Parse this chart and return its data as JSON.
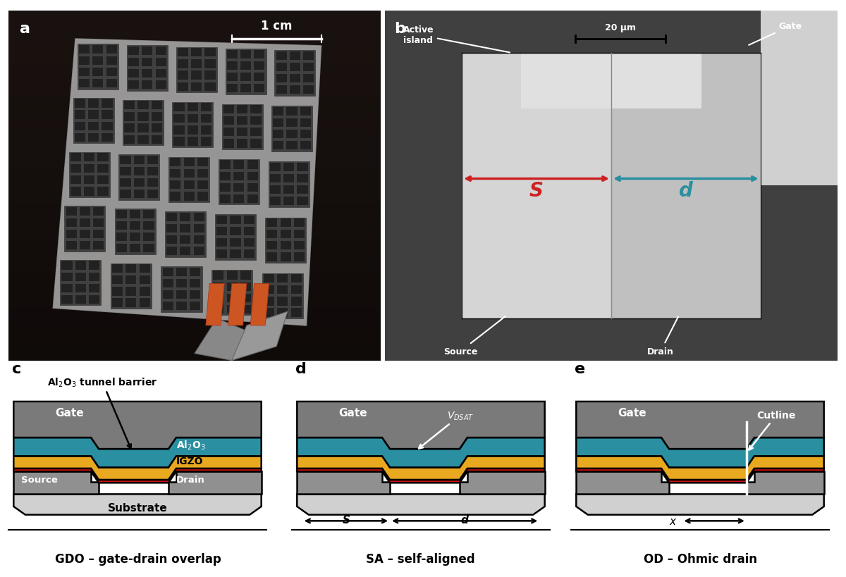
{
  "colors": {
    "gate_gray": "#7a7a7a",
    "al2o3_teal": "#2a8fa0",
    "igzo_gold": "#e8a820",
    "source_drain_gray": "#909090",
    "substrate_lightgray": "#d0d0d0",
    "red_barrier": "#cc1111",
    "background": "#ffffff",
    "black": "#000000",
    "white": "#ffffff",
    "light_gold": "#f5e090",
    "dark_bg": "#1a1212",
    "sem_bg": "#3a3a3a",
    "sem_light": "#c8c8c8",
    "sem_mid": "#b0b0b0",
    "sem_dark": "#606060"
  },
  "panel_labels": [
    "a",
    "b",
    "c",
    "d",
    "e"
  ],
  "bottom_labels": [
    "GDO – gate-drain overlap",
    "SA – self-aligned",
    "OD – Ohmic drain"
  ],
  "scale_bar_b": "20 μm",
  "scale_bar_a": "1 cm"
}
